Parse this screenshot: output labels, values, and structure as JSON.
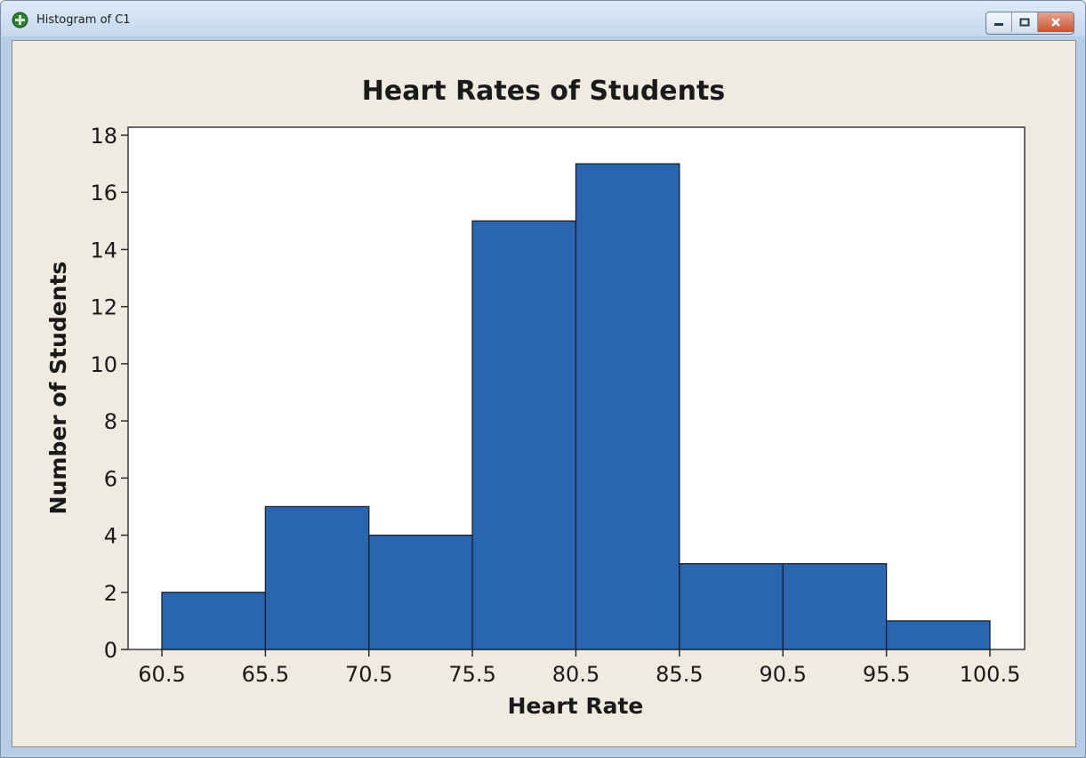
{
  "window": {
    "title": "Histogram of C1",
    "icon": "minitab-graph-icon",
    "buttons": [
      "minimize",
      "restore",
      "close"
    ]
  },
  "colors": {
    "bar_fill": "#2a65b0",
    "bar_stroke": "#16202e",
    "plot_background": "#ffffff",
    "chart_background": "#f0ebe1"
  },
  "chart_data": {
    "type": "bar",
    "title": "Heart Rates of Students",
    "xlabel": "Heart Rate",
    "ylabel": "Number of Students",
    "bin_edges": [
      60.5,
      65.5,
      70.5,
      75.5,
      80.5,
      85.5,
      90.5,
      95.5,
      100.5
    ],
    "x_tick_labels": [
      "60.5",
      "65.5",
      "70.5",
      "75.5",
      "80.5",
      "85.5",
      "90.5",
      "95.5",
      "100.5"
    ],
    "values": [
      2,
      5,
      4,
      15,
      17,
      3,
      3,
      1
    ],
    "ylim": [
      0,
      18
    ],
    "y_ticks": [
      0,
      2,
      4,
      6,
      8,
      10,
      12,
      14,
      16,
      18
    ],
    "grid": false,
    "legend": "none"
  }
}
